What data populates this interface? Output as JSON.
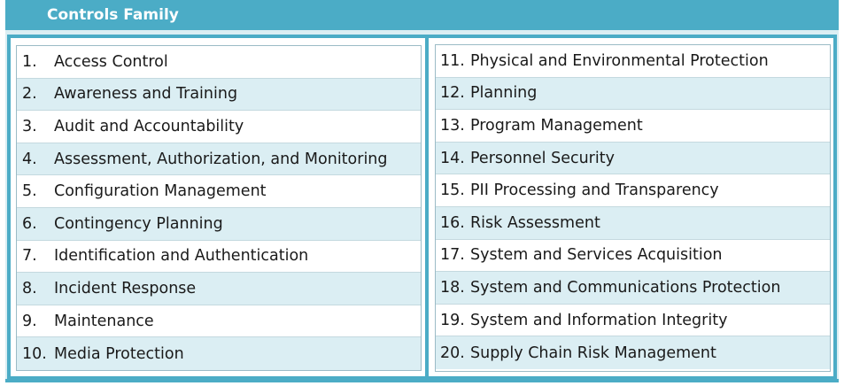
{
  "header": {
    "title": "Controls Family"
  },
  "families_left": [
    {
      "num": "1.",
      "label": "Access Control"
    },
    {
      "num": "2.",
      "label": "Awareness and Training"
    },
    {
      "num": "3.",
      "label": "Audit and Accountability"
    },
    {
      "num": "4.",
      "label": "Assessment, Authorization, and Monitoring"
    },
    {
      "num": "5.",
      "label": "Configuration Management"
    },
    {
      "num": "6.",
      "label": "Contingency Planning"
    },
    {
      "num": "7.",
      "label": "Identification and Authentication"
    },
    {
      "num": "8.",
      "label": "Incident Response"
    },
    {
      "num": "9.",
      "label": "Maintenance"
    },
    {
      "num": "10.",
      "label": "Media Protection"
    }
  ],
  "families_right": [
    {
      "num": "11.",
      "label": "Physical and Environmental Protection"
    },
    {
      "num": "12.",
      "label": "Planning"
    },
    {
      "num": "13.",
      "label": "Program Management"
    },
    {
      "num": "14.",
      "label": "Personnel Security"
    },
    {
      "num": "15.",
      "label": "PII Processing and Transparency"
    },
    {
      "num": "16.",
      "label": "Risk Assessment"
    },
    {
      "num": "17.",
      "label": "System and Services Acquisition"
    },
    {
      "num": "18.",
      "label": "System and Communications Protection"
    },
    {
      "num": "19.",
      "label": "System and Information Integrity"
    },
    {
      "num": "20.",
      "label": "Supply Chain Risk Management"
    }
  ]
}
